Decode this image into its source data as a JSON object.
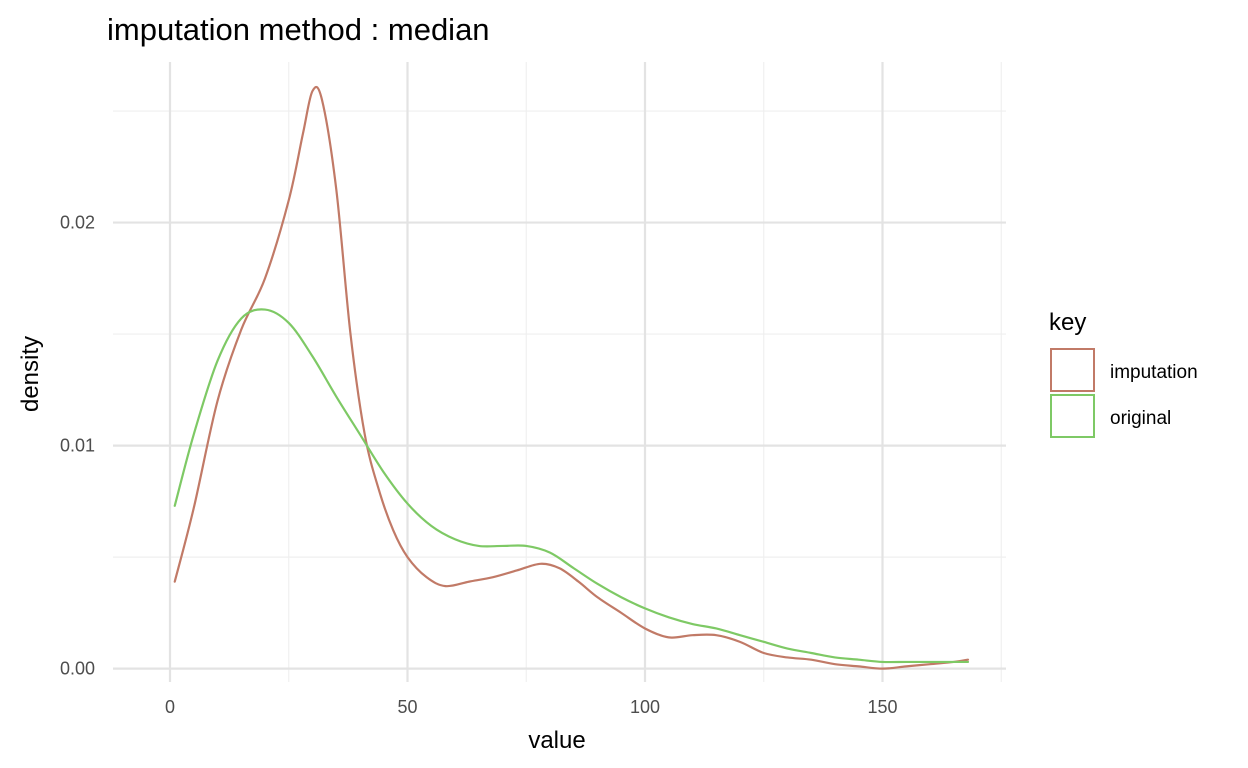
{
  "chart_data": {
    "type": "line",
    "title": "imputation method : median",
    "xlabel": "value",
    "ylabel": "density",
    "xlim": [
      -12,
      176
    ],
    "ylim": [
      -0.0006,
      0.0272
    ],
    "x_ticks": [
      0,
      50,
      100,
      150
    ],
    "x_tick_labels": [
      "0",
      "50",
      "100",
      "150"
    ],
    "x_minor_ticks": [
      25,
      75,
      125,
      175
    ],
    "y_ticks": [
      0.0,
      0.01,
      0.02
    ],
    "y_tick_labels": [
      "0.00",
      "0.01",
      "0.02"
    ],
    "y_minor_ticks": [
      0.005,
      0.015,
      0.025
    ],
    "grid": true,
    "legend": {
      "title": "key",
      "position": "right"
    },
    "series": [
      {
        "name": "imputation",
        "color": "#c17a67",
        "x": [
          1,
          5,
          10,
          15,
          20,
          25,
          28,
          30,
          32,
          35,
          38,
          41,
          44,
          47,
          50,
          54,
          58,
          63,
          68,
          73,
          78,
          82,
          86,
          90,
          95,
          100,
          105,
          110,
          115,
          120,
          125,
          130,
          135,
          140,
          145,
          150,
          155,
          160,
          165,
          168
        ],
        "y": [
          0.0039,
          0.0072,
          0.012,
          0.0152,
          0.0175,
          0.021,
          0.024,
          0.0259,
          0.0255,
          0.0215,
          0.015,
          0.0105,
          0.008,
          0.0062,
          0.005,
          0.0041,
          0.0037,
          0.0039,
          0.0041,
          0.0044,
          0.0047,
          0.0045,
          0.0039,
          0.0032,
          0.0025,
          0.0018,
          0.0014,
          0.0015,
          0.0015,
          0.0012,
          0.0007,
          0.0005,
          0.0004,
          0.0002,
          0.0001,
          0.0,
          0.0001,
          0.0002,
          0.0003,
          0.0004
        ]
      },
      {
        "name": "original",
        "color": "#7ec965",
        "x": [
          1,
          5,
          10,
          15,
          20,
          25,
          30,
          35,
          40,
          45,
          50,
          55,
          60,
          65,
          70,
          75,
          80,
          85,
          90,
          95,
          100,
          105,
          110,
          115,
          120,
          125,
          130,
          135,
          140,
          145,
          150,
          155,
          160,
          165,
          168
        ],
        "y": [
          0.0073,
          0.0105,
          0.0138,
          0.0157,
          0.0161,
          0.0155,
          0.014,
          0.0122,
          0.0105,
          0.0088,
          0.0074,
          0.0064,
          0.0058,
          0.0055,
          0.0055,
          0.0055,
          0.0052,
          0.0045,
          0.0038,
          0.0032,
          0.0027,
          0.0023,
          0.002,
          0.0018,
          0.0015,
          0.0012,
          0.0009,
          0.0007,
          0.0005,
          0.0004,
          0.0003,
          0.0003,
          0.0003,
          0.0003,
          0.0003
        ]
      }
    ]
  }
}
